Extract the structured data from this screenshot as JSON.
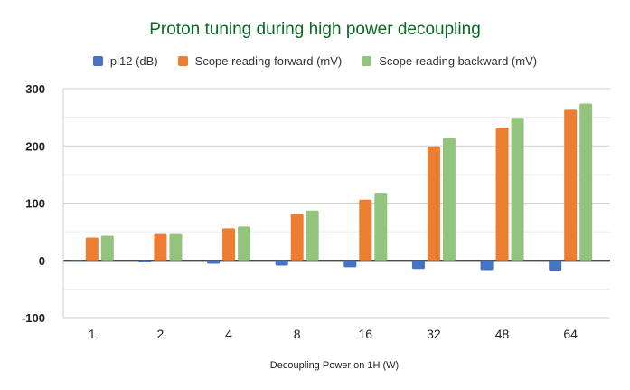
{
  "chart_data": {
    "type": "bar",
    "title": "Proton tuning during high power decoupling",
    "xlabel": "Decoupling Power on 1H (W)",
    "ylabel": "",
    "categories": [
      "1",
      "2",
      "4",
      "8",
      "16",
      "32",
      "48",
      "64"
    ],
    "series": [
      {
        "name": "pl12 (dB)",
        "color": "#4472c4",
        "values": [
          0,
          -3,
          -6,
          -9,
          -12,
          -15,
          -17,
          -18
        ]
      },
      {
        "name": "Scope reading forward (mV)",
        "color": "#ed7d31",
        "values": [
          40,
          46,
          56,
          81,
          106,
          199,
          232,
          263
        ]
      },
      {
        "name": "Scope reading backward (mV)",
        "color": "#93c47d",
        "values": [
          43,
          46,
          59,
          87,
          118,
          214,
          249,
          274
        ]
      }
    ],
    "ylim": [
      -100,
      300
    ],
    "yticks": [
      -100,
      0,
      100,
      200,
      300
    ],
    "grid": true,
    "legend": "top"
  }
}
